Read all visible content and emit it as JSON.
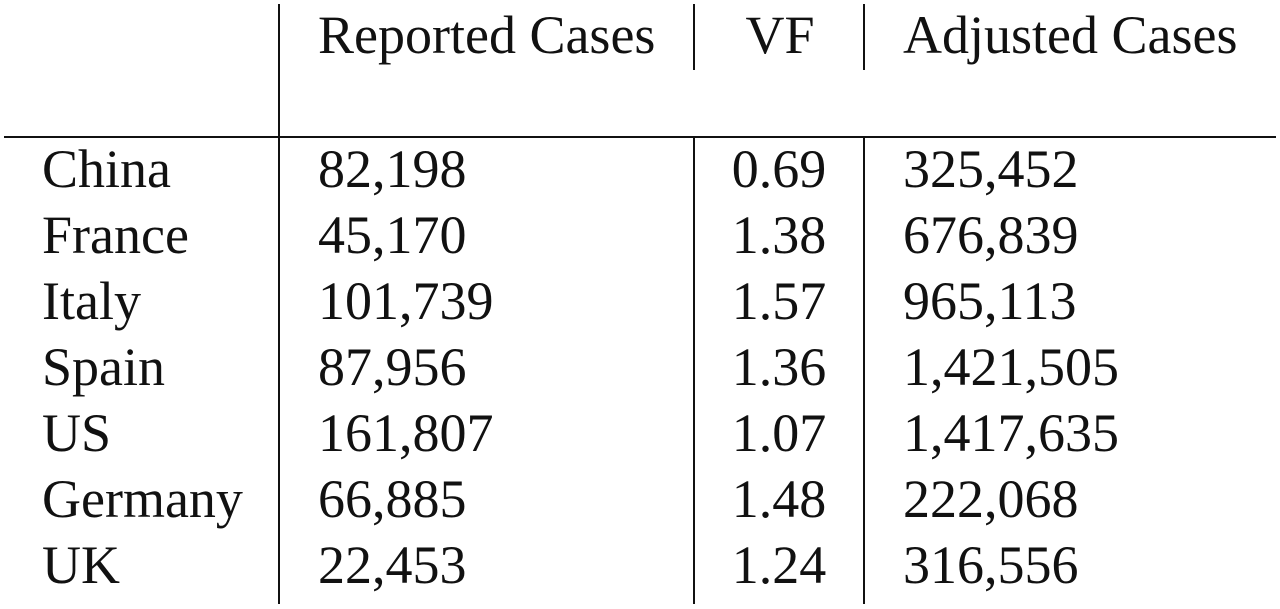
{
  "table": {
    "headers": {
      "country": "",
      "reported": "Reported Cases",
      "vf": "VF",
      "adjusted": "Adjusted Cases"
    },
    "rows": [
      {
        "country": "China",
        "reported": "82,198",
        "vf": "0.69",
        "adjusted": "325,452"
      },
      {
        "country": "France",
        "reported": "45,170",
        "vf": "1.38",
        "adjusted": "676,839"
      },
      {
        "country": "Italy",
        "reported": "101,739",
        "vf": "1.57",
        "adjusted": "965,113"
      },
      {
        "country": "Spain",
        "reported": "87,956",
        "vf": "1.36",
        "adjusted": "1,421,505"
      },
      {
        "country": "US",
        "reported": "161,807",
        "vf": "1.07",
        "adjusted": "1,417,635"
      },
      {
        "country": "Germany",
        "reported": "66,885",
        "vf": "1.48",
        "adjusted": "222,068"
      },
      {
        "country": "UK",
        "reported": "22,453",
        "vf": "1.24",
        "adjusted": "316,556"
      }
    ]
  }
}
